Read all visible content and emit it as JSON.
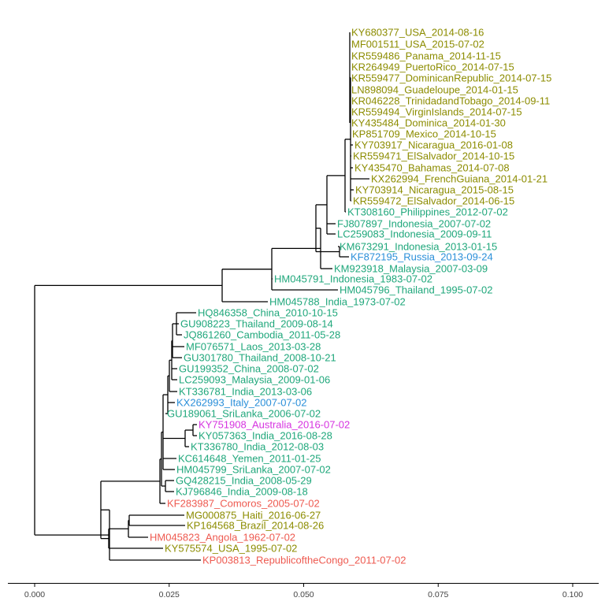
{
  "chart_data": {
    "type": "tree",
    "title": "",
    "xlabel": "",
    "ylabel": "",
    "xlim": [
      0,
      0.1
    ],
    "grid": false,
    "ticks": [
      "0.000",
      "0.025",
      "0.050",
      "0.075",
      "0.100"
    ],
    "tick_values": [
      0,
      0.025,
      0.05,
      0.075,
      0.1
    ],
    "colors": {
      "olive": "#8c8c00",
      "green": "#1fa77b",
      "blue": "#2a8fd9",
      "magenta": "#d633e0",
      "red": "#ee5a50"
    },
    "tips": [
      {
        "label": "KY680377_USA_2014-08-16",
        "color": "olive"
      },
      {
        "label": "MF001511_USA_2015-07-02",
        "color": "olive"
      },
      {
        "label": "KR559486_Panama_2014-11-15",
        "color": "olive"
      },
      {
        "label": "KR264949_PuertoRico_2014-07-15",
        "color": "olive"
      },
      {
        "label": "KR559477_DominicanRepublic_2014-07-15",
        "color": "olive"
      },
      {
        "label": "LN898094_Guadeloupe_2014-01-15",
        "color": "olive"
      },
      {
        "label": "KR046228_TrinidadandTobago_2014-09-11",
        "color": "olive"
      },
      {
        "label": "KR559494_VirginIslands_2014-07-15",
        "color": "olive"
      },
      {
        "label": "KY435484_Dominica_2014-01-30",
        "color": "olive"
      },
      {
        "label": "KP851709_Mexico_2014-10-15",
        "color": "olive"
      },
      {
        "label": "KY703917_Nicaragua_2016-01-08",
        "color": "olive"
      },
      {
        "label": "KR559471_ElSalvador_2014-10-15",
        "color": "olive"
      },
      {
        "label": "KY435470_Bahamas_2014-07-08",
        "color": "olive"
      },
      {
        "label": "KX262994_FrenchGuiana_2014-01-21",
        "color": "olive"
      },
      {
        "label": "KY703914_Nicaragua_2015-08-15",
        "color": "olive"
      },
      {
        "label": "KR559472_ElSalvador_2014-06-15",
        "color": "olive"
      },
      {
        "label": "KT308160_Philippines_2012-07-02",
        "color": "green"
      },
      {
        "label": "FJ807897_Indonesia_2007-07-02",
        "color": "green"
      },
      {
        "label": "LC259083_Indonesia_2009-09-11",
        "color": "green"
      },
      {
        "label": "KM673291_Indonesia_2013-01-15",
        "color": "green"
      },
      {
        "label": "KF872195_Russia_2013-09-24",
        "color": "blue"
      },
      {
        "label": "KM923918_Malaysia_2007-03-09",
        "color": "green"
      },
      {
        "label": "HM045791_Indonesia_1983-07-02",
        "color": "green"
      },
      {
        "label": "HM045796_Thailand_1995-07-02",
        "color": "green"
      },
      {
        "label": "HM045788_India_1973-07-02",
        "color": "green"
      },
      {
        "label": "HQ846358_China_2010-10-15",
        "color": "green"
      },
      {
        "label": "GU908223_Thailand_2009-08-14",
        "color": "green"
      },
      {
        "label": "JQ861260_Cambodia_2011-05-28",
        "color": "green"
      },
      {
        "label": "MF076571_Laos_2013-03-28",
        "color": "green"
      },
      {
        "label": "GU301780_Thailand_2008-10-21",
        "color": "green"
      },
      {
        "label": "GU199352_China_2008-07-02",
        "color": "green"
      },
      {
        "label": "LC259093_Malaysia_2009-01-06",
        "color": "green"
      },
      {
        "label": "KT336781_India_2013-03-06",
        "color": "green"
      },
      {
        "label": "KX262993_Italy_2007-07-02",
        "color": "blue"
      },
      {
        "label": "GU189061_SriLanka_2006-07-02",
        "color": "green"
      },
      {
        "label": "KY751908_Australia_2016-07-02",
        "color": "magenta"
      },
      {
        "label": "KY057363_India_2016-08-28",
        "color": "green"
      },
      {
        "label": "KT336780_India_2012-08-03",
        "color": "green"
      },
      {
        "label": "KC614648_Yemen_2011-01-25",
        "color": "green"
      },
      {
        "label": "HM045799_SriLanka_2007-07-02",
        "color": "green"
      },
      {
        "label": "GQ428215_India_2008-05-29",
        "color": "green"
      },
      {
        "label": "KJ796846_India_2009-08-18",
        "color": "green"
      },
      {
        "label": "KF283987_Comoros_2005-07-02",
        "color": "red"
      },
      {
        "label": "MG000875_Haiti_2016-06-27",
        "color": "olive"
      },
      {
        "label": "KP164568_Brazil_2014-08-26",
        "color": "olive"
      },
      {
        "label": "HM045823_Angola_1962-07-02",
        "color": "red"
      },
      {
        "label": "KY575574_USA_1995-07-02",
        "color": "olive"
      },
      {
        "label": "KP003813_RepublicoftheCongo_2011-07-02",
        "color": "red"
      }
    ]
  }
}
